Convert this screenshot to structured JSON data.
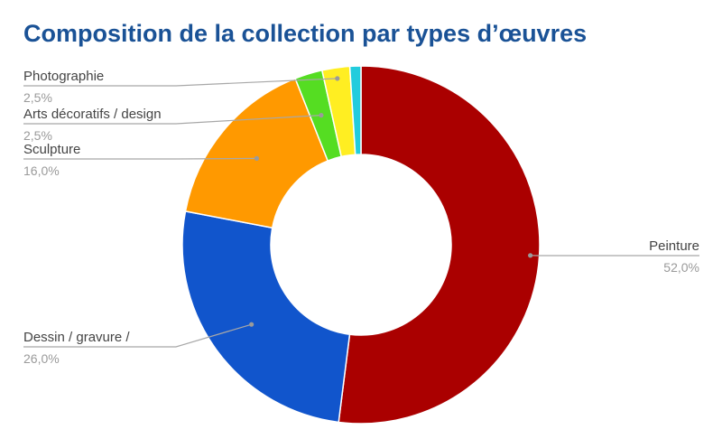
{
  "chart_data": {
    "type": "pie",
    "donut": true,
    "title": "Composition de la collection par types d’œuvres",
    "slices": [
      {
        "label": "Peinture",
        "value": 52.0,
        "value_label": "52,0%",
        "color": "#aa0000"
      },
      {
        "label": "Dessin / gravure /",
        "value": 26.0,
        "value_label": "26,0%",
        "color": "#1155cc"
      },
      {
        "label": "Sculpture",
        "value": 16.0,
        "value_label": "16,0%",
        "color": "#ff9900"
      },
      {
        "label": "Arts décoratifs / design",
        "value": 2.5,
        "value_label": "2,5%",
        "color": "#55dd22"
      },
      {
        "label": "Photographie",
        "value": 2.5,
        "value_label": "2,5%",
        "color": "#ffee22"
      },
      {
        "label": "",
        "value": 1.0,
        "value_label": "",
        "color": "#22ccdd"
      }
    ],
    "legend": "none"
  }
}
